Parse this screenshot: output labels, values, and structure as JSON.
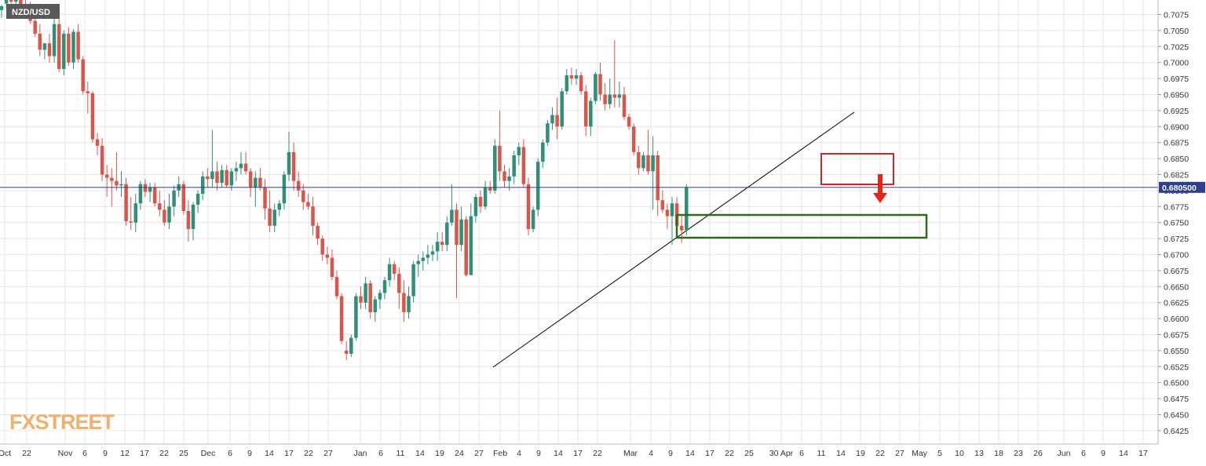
{
  "symbol": "NZD/USD",
  "watermark": {
    "fx": "FX",
    "street": "STREET"
  },
  "colors": {
    "up": "#2f8f78",
    "down": "#d9574a",
    "grid": "#e6e6e6",
    "price_line": "#2c3e8c",
    "trendline": "#000000",
    "resistance_box": "#c62828",
    "support_box": "#2e6b1f",
    "arrow": "#e8231a",
    "label_bg": "#595959",
    "price_label_bg": "#2c3e8c",
    "watermark": "#f0b070"
  },
  "icons": [
    "down-arrow-icon"
  ],
  "chart_data": {
    "type": "candlestick",
    "title": "NZD/USD",
    "timeframe": "daily",
    "ylim": [
      0.641,
      0.7095
    ],
    "y_ticks": [
      "0.7075",
      "0.7050",
      "0.7025",
      "0.7000",
      "0.6975",
      "0.6950",
      "0.6925",
      "0.6900",
      "0.6875",
      "0.6850",
      "0.6825",
      "0.6800",
      "0.6775",
      "0.6750",
      "0.6725",
      "0.6700",
      "0.6675",
      "0.6650",
      "0.6625",
      "0.6600",
      "0.6575",
      "0.6550",
      "0.6525",
      "0.6500",
      "0.6475",
      "0.6450",
      "0.6425"
    ],
    "x_ticks": [
      "Oct",
      "22",
      "Nov",
      "6",
      "9",
      "12",
      "17",
      "22",
      "25",
      "Dec",
      "6",
      "9",
      "14",
      "17",
      "22",
      "27",
      "Jan",
      "6",
      "11",
      "14",
      "19",
      "24",
      "27",
      "Feb",
      "4",
      "9",
      "14",
      "17",
      "22",
      "Mar",
      "4",
      "9",
      "14",
      "17",
      "22",
      "25",
      "30 Apr",
      "6",
      "11",
      "14",
      "19",
      "22",
      "27",
      "May",
      "5",
      "10",
      "13",
      "18",
      "23",
      "26",
      "Jun",
      "6",
      "9",
      "14",
      "17"
    ],
    "last_price": "0.680500",
    "last_price_value": 0.6805,
    "candles": [
      [
        0.7082,
        0.709,
        0.707,
        0.7088
      ],
      [
        0.7092,
        0.7108,
        0.7085,
        0.71
      ],
      [
        0.71,
        0.711,
        0.709,
        0.7095
      ],
      [
        0.7095,
        0.7108,
        0.7088,
        0.7102
      ],
      [
        0.7102,
        0.711,
        0.708,
        0.7085
      ],
      [
        0.7085,
        0.71,
        0.707,
        0.708
      ],
      [
        0.7085,
        0.7095,
        0.706,
        0.7065
      ],
      [
        0.7065,
        0.708,
        0.704,
        0.7045
      ],
      [
        0.7045,
        0.706,
        0.701,
        0.702
      ],
      [
        0.702,
        0.703,
        0.7005,
        0.703
      ],
      [
        0.703,
        0.7045,
        0.7,
        0.701
      ],
      [
        0.701,
        0.707,
        0.7,
        0.706
      ],
      [
        0.706,
        0.7075,
        0.6985,
        0.699
      ],
      [
        0.699,
        0.705,
        0.698,
        0.7045
      ],
      [
        0.7045,
        0.7055,
        0.6995,
        0.7
      ],
      [
        0.7,
        0.7052,
        0.699,
        0.7048
      ],
      [
        0.7048,
        0.706,
        0.7,
        0.7005
      ],
      [
        0.7005,
        0.701,
        0.695,
        0.6955
      ],
      [
        0.6955,
        0.697,
        0.692,
        0.6952
      ],
      [
        0.6952,
        0.6955,
        0.6875,
        0.688
      ],
      [
        0.688,
        0.689,
        0.6855,
        0.687
      ],
      [
        0.687,
        0.6882,
        0.6815,
        0.6825
      ],
      [
        0.6825,
        0.684,
        0.679,
        0.682
      ],
      [
        0.682,
        0.6835,
        0.6775,
        0.6815
      ],
      [
        0.6815,
        0.686,
        0.68,
        0.6808
      ],
      [
        0.6808,
        0.683,
        0.679,
        0.681
      ],
      [
        0.681,
        0.682,
        0.6745,
        0.6752
      ],
      [
        0.6752,
        0.679,
        0.6738,
        0.675
      ],
      [
        0.675,
        0.6795,
        0.6735,
        0.678
      ],
      [
        0.678,
        0.6815,
        0.677,
        0.681
      ],
      [
        0.681,
        0.6818,
        0.679,
        0.6798
      ],
      [
        0.6798,
        0.6812,
        0.6782,
        0.6805
      ],
      [
        0.6805,
        0.6812,
        0.6775,
        0.678
      ],
      [
        0.678,
        0.68,
        0.676,
        0.677
      ],
      [
        0.677,
        0.6785,
        0.6745,
        0.675
      ],
      [
        0.675,
        0.6795,
        0.674,
        0.6775
      ],
      [
        0.6775,
        0.6808,
        0.676,
        0.68
      ],
      [
        0.68,
        0.6822,
        0.679,
        0.681
      ],
      [
        0.681,
        0.6815,
        0.6762,
        0.6768
      ],
      [
        0.6768,
        0.6785,
        0.672,
        0.674
      ],
      [
        0.674,
        0.6782,
        0.6722,
        0.6778
      ],
      [
        0.6778,
        0.68,
        0.6765,
        0.6795
      ],
      [
        0.6795,
        0.683,
        0.6785,
        0.6822
      ],
      [
        0.6822,
        0.6835,
        0.6805,
        0.6818
      ],
      [
        0.6818,
        0.6895,
        0.6805,
        0.683
      ],
      [
        0.683,
        0.6845,
        0.68,
        0.6812
      ],
      [
        0.6812,
        0.684,
        0.6805,
        0.6832
      ],
      [
        0.6832,
        0.684,
        0.6805,
        0.6808
      ],
      [
        0.6808,
        0.6835,
        0.68,
        0.683
      ],
      [
        0.683,
        0.6845,
        0.6815,
        0.6835
      ],
      [
        0.6835,
        0.686,
        0.6825,
        0.6842
      ],
      [
        0.6842,
        0.686,
        0.6825,
        0.683
      ],
      [
        0.683,
        0.6835,
        0.679,
        0.6805
      ],
      [
        0.6805,
        0.683,
        0.6775,
        0.682
      ],
      [
        0.682,
        0.6835,
        0.68,
        0.6805
      ],
      [
        0.6805,
        0.6818,
        0.6755,
        0.6772
      ],
      [
        0.6772,
        0.68,
        0.6735,
        0.6745
      ],
      [
        0.6745,
        0.678,
        0.6735,
        0.677
      ],
      [
        0.677,
        0.6785,
        0.676,
        0.678
      ],
      [
        0.678,
        0.683,
        0.677,
        0.6825
      ],
      [
        0.6825,
        0.6892,
        0.6815,
        0.686
      ],
      [
        0.686,
        0.6875,
        0.68,
        0.6815
      ],
      [
        0.6815,
        0.683,
        0.679,
        0.68
      ],
      [
        0.68,
        0.681,
        0.677,
        0.6782
      ],
      [
        0.6782,
        0.6795,
        0.677,
        0.6775
      ],
      [
        0.6775,
        0.679,
        0.673,
        0.6745
      ],
      [
        0.6745,
        0.675,
        0.6715,
        0.6725
      ],
      [
        0.6725,
        0.673,
        0.669,
        0.67
      ],
      [
        0.67,
        0.6712,
        0.6685,
        0.6695
      ],
      [
        0.6695,
        0.6708,
        0.666,
        0.6665
      ],
      [
        0.6665,
        0.6675,
        0.663,
        0.6635
      ],
      [
        0.6635,
        0.664,
        0.656,
        0.6565
      ],
      [
        0.655,
        0.6565,
        0.6535,
        0.6545
      ],
      [
        0.6545,
        0.6575,
        0.654,
        0.657
      ],
      [
        0.657,
        0.664,
        0.6565,
        0.6635
      ],
      [
        0.6635,
        0.665,
        0.6615,
        0.6625
      ],
      [
        0.6625,
        0.6665,
        0.6615,
        0.6655
      ],
      [
        0.6655,
        0.666,
        0.66,
        0.661
      ],
      [
        0.661,
        0.6635,
        0.6595,
        0.663
      ],
      [
        0.663,
        0.6645,
        0.6615,
        0.664
      ],
      [
        0.664,
        0.6665,
        0.663,
        0.666
      ],
      [
        0.666,
        0.6695,
        0.665,
        0.6685
      ],
      [
        0.6685,
        0.669,
        0.666,
        0.667
      ],
      [
        0.667,
        0.668,
        0.6615,
        0.664
      ],
      [
        0.664,
        0.666,
        0.6595,
        0.661
      ],
      [
        0.661,
        0.665,
        0.66,
        0.6635
      ],
      [
        0.6635,
        0.669,
        0.6625,
        0.6685
      ],
      [
        0.6685,
        0.67,
        0.6665,
        0.669
      ],
      [
        0.669,
        0.6705,
        0.6675,
        0.6695
      ],
      [
        0.6695,
        0.6715,
        0.6685,
        0.67
      ],
      [
        0.67,
        0.6715,
        0.669,
        0.6705
      ],
      [
        0.6705,
        0.6735,
        0.669,
        0.672
      ],
      [
        0.672,
        0.6735,
        0.6705,
        0.6715
      ],
      [
        0.6715,
        0.676,
        0.6705,
        0.675
      ],
      [
        0.675,
        0.681,
        0.6745,
        0.677
      ],
      [
        0.677,
        0.678,
        0.6632,
        0.6715
      ],
      [
        0.6715,
        0.6775,
        0.6705,
        0.6755
      ],
      [
        0.6755,
        0.676,
        0.6665,
        0.6668
      ],
      [
        0.6668,
        0.678,
        0.6668,
        0.676
      ],
      [
        0.676,
        0.6795,
        0.675,
        0.679
      ],
      [
        0.679,
        0.68,
        0.6765,
        0.6775
      ],
      [
        0.6775,
        0.6815,
        0.677,
        0.6805
      ],
      [
        0.6805,
        0.6815,
        0.6795,
        0.68
      ],
      [
        0.68,
        0.688,
        0.6795,
        0.687
      ],
      [
        0.687,
        0.6925,
        0.6815,
        0.683
      ],
      [
        0.683,
        0.684,
        0.6805,
        0.6815
      ],
      [
        0.6815,
        0.6835,
        0.68,
        0.6822
      ],
      [
        0.6822,
        0.6862,
        0.681,
        0.6855
      ],
      [
        0.6855,
        0.6875,
        0.684,
        0.6868
      ],
      [
        0.6868,
        0.688,
        0.6805,
        0.681
      ],
      [
        0.681,
        0.682,
        0.673,
        0.674
      ],
      [
        0.674,
        0.6775,
        0.6735,
        0.677
      ],
      [
        0.677,
        0.685,
        0.676,
        0.6845
      ],
      [
        0.6845,
        0.688,
        0.6835,
        0.6875
      ],
      [
        0.6875,
        0.691,
        0.687,
        0.6905
      ],
      [
        0.6905,
        0.693,
        0.6895,
        0.6918
      ],
      [
        0.6918,
        0.6945,
        0.688,
        0.69
      ],
      [
        0.69,
        0.696,
        0.6895,
        0.6955
      ],
      [
        0.6955,
        0.699,
        0.695,
        0.698
      ],
      [
        0.698,
        0.6992,
        0.6965,
        0.6975
      ],
      [
        0.6975,
        0.699,
        0.6965,
        0.698
      ],
      [
        0.698,
        0.6985,
        0.695,
        0.6955
      ],
      [
        0.6955,
        0.6965,
        0.6885,
        0.69
      ],
      [
        0.69,
        0.6945,
        0.6885,
        0.694
      ],
      [
        0.694,
        0.6985,
        0.6935,
        0.6982
      ],
      [
        0.6982,
        0.7,
        0.694,
        0.695
      ],
      [
        0.695,
        0.6968,
        0.6925,
        0.6935
      ],
      [
        0.6935,
        0.6975,
        0.6928,
        0.695
      ],
      [
        0.695,
        0.7035,
        0.693,
        0.6945
      ],
      [
        0.6945,
        0.697,
        0.693,
        0.695
      ],
      [
        0.695,
        0.6962,
        0.691,
        0.6915
      ],
      [
        0.6915,
        0.692,
        0.6895,
        0.69
      ],
      [
        0.69,
        0.6905,
        0.6855,
        0.686
      ],
      [
        0.686,
        0.687,
        0.6825,
        0.6835
      ],
      [
        0.6835,
        0.686,
        0.683,
        0.6855
      ],
      [
        0.6855,
        0.6895,
        0.6825,
        0.683
      ],
      [
        0.683,
        0.6885,
        0.677,
        0.6855
      ],
      [
        0.6855,
        0.6862,
        0.676,
        0.6785
      ],
      [
        0.6785,
        0.68,
        0.6765,
        0.677
      ],
      [
        0.677,
        0.678,
        0.674,
        0.676
      ],
      [
        0.676,
        0.679,
        0.6715,
        0.678
      ],
      [
        0.678,
        0.679,
        0.6735,
        0.6745
      ],
      [
        0.6745,
        0.676,
        0.6718,
        0.6738
      ],
      [
        0.6738,
        0.681,
        0.673,
        0.6805
      ]
    ]
  }
}
